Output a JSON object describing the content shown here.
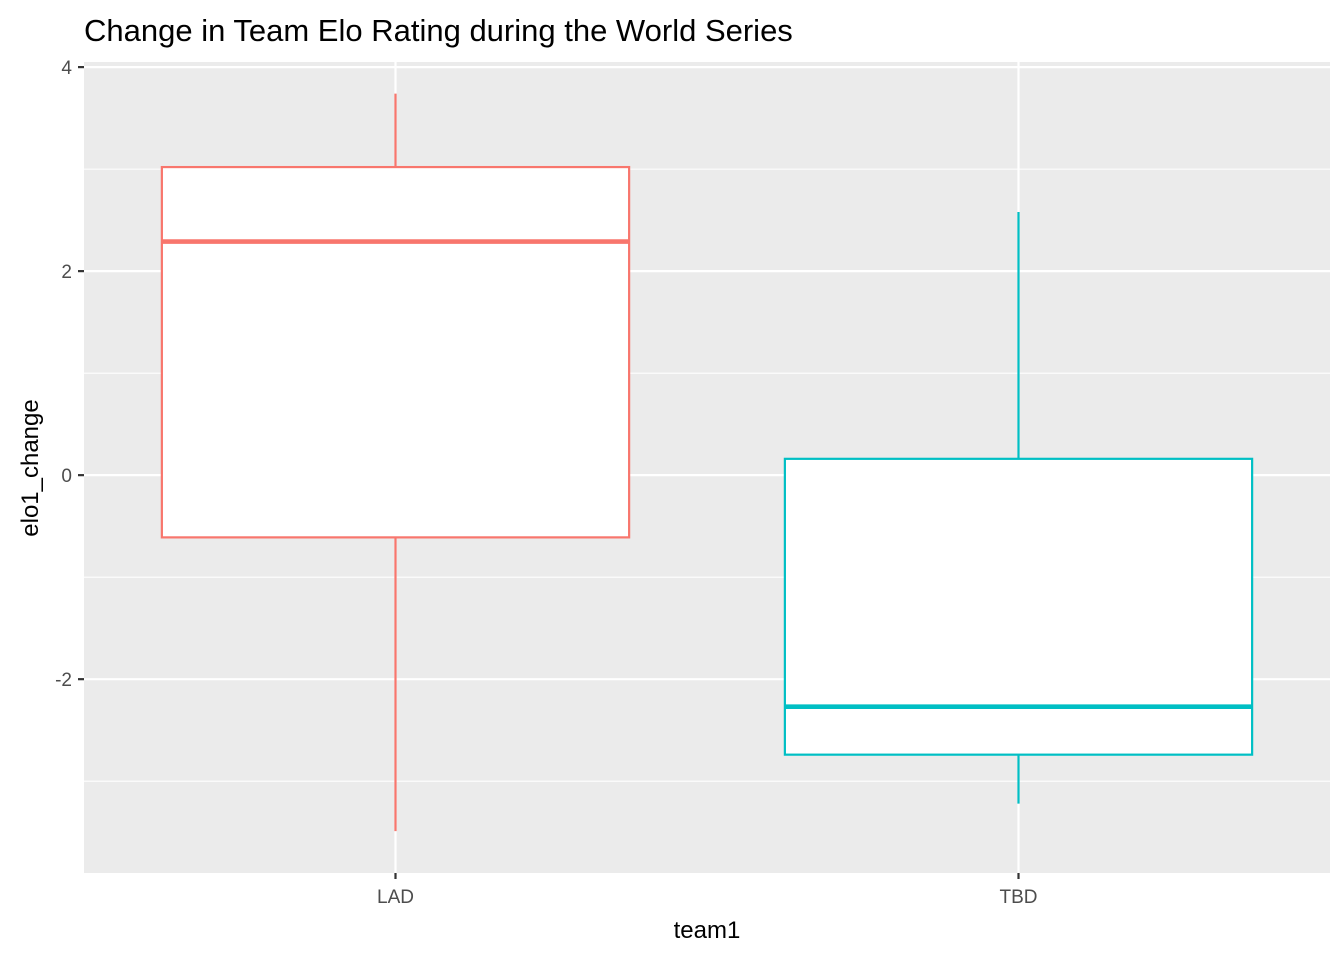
{
  "chart_data": {
    "type": "boxplot",
    "title": "Change in Team Elo Rating during the World Series",
    "xlabel": "team1",
    "ylabel": "elo1_change",
    "categories": [
      "LAD",
      "TBD"
    ],
    "ylim": [
      -3.9,
      4.05
    ],
    "y_ticks": [
      -2,
      0,
      2,
      4
    ],
    "y_tick_labels": [
      "-2",
      "0",
      "2",
      "4"
    ],
    "grid": true,
    "panel_background": "#ebebeb",
    "grid_color": "#ffffff",
    "legend": "none",
    "boxes": [
      {
        "category": "LAD",
        "whisker_low": -3.49,
        "q1": -0.61,
        "median": 2.29,
        "q3": 3.02,
        "whisker_high": 3.74,
        "color": "#F8766D"
      },
      {
        "category": "TBD",
        "whisker_low": -3.22,
        "q1": -2.74,
        "median": -2.27,
        "q3": 0.16,
        "whisker_high": 2.58,
        "color": "#00BFC4"
      }
    ]
  }
}
